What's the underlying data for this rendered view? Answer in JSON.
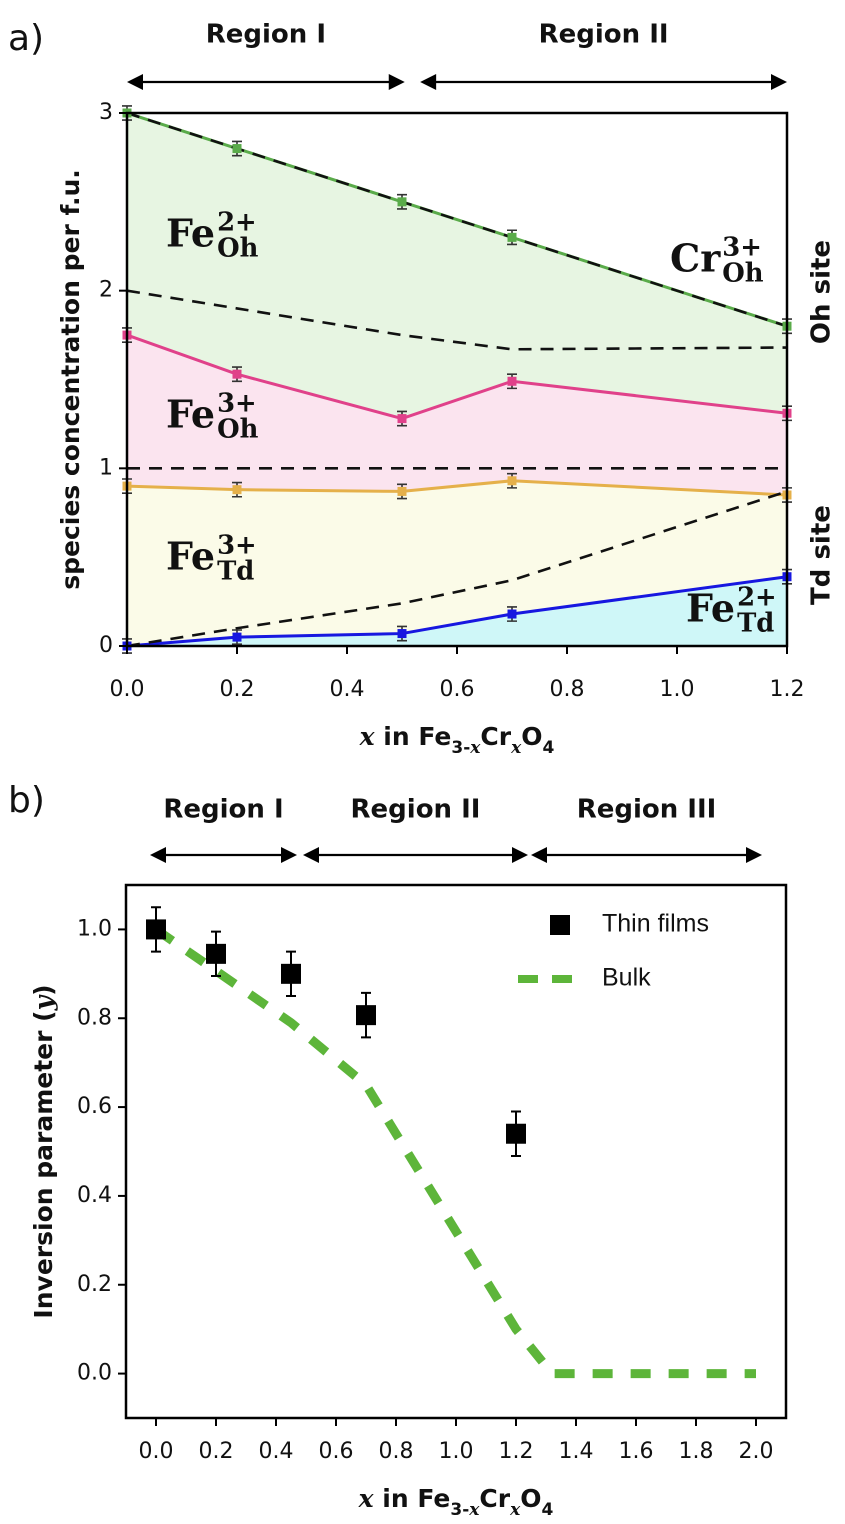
{
  "chart_data": [
    {
      "type": "area-line",
      "panel_label": "a)",
      "xlabel": [
        {
          "text": "x",
          "italic": true
        },
        {
          "text": " in Fe"
        },
        {
          "text": "3-",
          "sub": true
        },
        {
          "text": "x",
          "sub": true,
          "italic": true
        },
        {
          "text": "Cr"
        },
        {
          "text": "x",
          "sub": true,
          "italic": true
        },
        {
          "text": "O"
        },
        {
          "text": "4",
          "sub": true
        }
      ],
      "ylabel": [
        {
          "text": "species concentration per f.u."
        }
      ],
      "xlim": [
        0,
        1.2
      ],
      "ylim": [
        0,
        3
      ],
      "xticks": [
        {
          "value": 0,
          "label": "0.0"
        },
        {
          "value": 0.2,
          "label": "0.2"
        },
        {
          "value": 0.4,
          "label": "0.4"
        },
        {
          "value": 0.6,
          "label": "0.6"
        },
        {
          "value": 0.8,
          "label": "0.8"
        },
        {
          "value": 1.0,
          "label": "1.0"
        },
        {
          "value": 1.2,
          "label": "1.2"
        }
      ],
      "yticks": [
        0,
        1,
        2,
        3
      ],
      "regions": [
        {
          "label": "Region I",
          "range": [
            0,
            0.505
          ]
        },
        {
          "label": "Region II",
          "range": [
            0.533,
            1.2
          ]
        }
      ],
      "site_labels": [
        "Oh site",
        "Td site"
      ],
      "x": [
        0,
        0.2,
        0.5,
        0.7,
        1.2
      ],
      "series": [
        {
          "label": {
            "base": "Fe",
            "sup": "2+",
            "sub": "Oh"
          },
          "color": "#5aab4a",
          "fill": "#e7f5e2",
          "label_color": "#5aa650",
          "values": [
            3.0,
            2.8,
            2.5,
            2.3,
            1.8
          ],
          "errors": [
            0.04,
            0.04,
            0.04,
            0.04,
            0.04
          ]
        },
        {
          "label": {
            "base": "Fe",
            "sup": "3+",
            "sub": "Oh"
          },
          "color": "#e0418a",
          "fill": "#fbe4ef",
          "label_color": "#e0418a",
          "values": [
            1.75,
            1.53,
            1.28,
            1.49,
            1.31
          ],
          "errors": [
            0.04,
            0.04,
            0.04,
            0.04,
            0.04
          ]
        },
        {
          "label": {
            "base": "Fe",
            "sup": "3+",
            "sub": "Td"
          },
          "color": "#e5b04a",
          "fill": "#fbfbe8",
          "label_color": "#c79a30",
          "values": [
            0.9,
            0.88,
            0.87,
            0.93,
            0.85
          ],
          "errors": [
            0.04,
            0.04,
            0.04,
            0.04,
            0.04
          ]
        },
        {
          "label": {
            "base": "Fe",
            "sup": "2+",
            "sub": "Td"
          },
          "color": "#1717e0",
          "fill": "#cff7f8",
          "label_color": "#1a1ad0",
          "values": [
            0.0,
            0.05,
            0.07,
            0.18,
            0.39
          ],
          "errors": [
            0.04,
            0.04,
            0.04,
            0.04,
            0.04
          ]
        }
      ],
      "dashed": [
        {
          "label": {
            "base": "Cr",
            "sup": "3+",
            "sub": "Oh"
          },
          "values": [
            3.0,
            2.8,
            2.5,
            2.3,
            1.8
          ]
        },
        {
          "values": [
            2.0,
            1.9,
            1.75,
            1.67,
            1.68
          ]
        },
        {
          "values": [
            1,
            1,
            1,
            1,
            1
          ]
        },
        {
          "values": [
            0,
            0.1,
            0.24,
            0.37,
            0.87
          ]
        }
      ],
      "dash_color": "#111111"
    },
    {
      "type": "scatter-line",
      "panel_label": "b)",
      "xlabel": [
        {
          "text": "x",
          "italic": true
        },
        {
          "text": " in Fe"
        },
        {
          "text": "3-",
          "sub": true
        },
        {
          "text": "x",
          "sub": true,
          "italic": true
        },
        {
          "text": "Cr"
        },
        {
          "text": "x",
          "sub": true,
          "italic": true
        },
        {
          "text": "O"
        },
        {
          "text": "4",
          "sub": true
        }
      ],
      "ylabel": [
        {
          "text": "Inversion parameter ("
        },
        {
          "text": "y",
          "italic": true
        },
        {
          "text": ")"
        }
      ],
      "xlim": [
        -0.1,
        2.1
      ],
      "ylim": [
        -0.1,
        1.1
      ],
      "xticks": [
        {
          "value": 0,
          "label": "0.0"
        },
        {
          "value": 0.2,
          "label": "0.2"
        },
        {
          "value": 0.4,
          "label": "0.4"
        },
        {
          "value": 0.6,
          "label": "0.6"
        },
        {
          "value": 0.8,
          "label": "0.8"
        },
        {
          "value": 1.0,
          "label": "1.0"
        },
        {
          "value": 1.2,
          "label": "1.2"
        },
        {
          "value": 1.4,
          "label": "1.4"
        },
        {
          "value": 1.6,
          "label": "1.6"
        },
        {
          "value": 1.8,
          "label": "1.8"
        },
        {
          "value": 2.0,
          "label": "2.0"
        }
      ],
      "yticks": [
        {
          "value": 0,
          "label": "0.0"
        },
        {
          "value": 0.2,
          "label": "0.2"
        },
        {
          "value": 0.4,
          "label": "0.4"
        },
        {
          "value": 0.6,
          "label": "0.6"
        },
        {
          "value": 0.8,
          "label": "0.8"
        },
        {
          "value": 1.0,
          "label": "1.0"
        }
      ],
      "regions": [
        {
          "label": "Region I",
          "range": [
            -0.02,
            0.47
          ]
        },
        {
          "label": "Region II",
          "range": [
            0.49,
            1.24
          ]
        },
        {
          "label": "Region III",
          "range": [
            1.25,
            2.02
          ]
        }
      ],
      "legend": "upper right",
      "series": [
        {
          "name": "Thin films",
          "kind": "scatter",
          "color": "#000000",
          "x": [
            0,
            0.2,
            0.45,
            0.7,
            1.2
          ],
          "values": [
            1.0,
            0.945,
            0.9,
            0.807,
            0.54
          ],
          "errors": [
            0.05,
            0.05,
            0.05,
            0.05,
            0.05
          ]
        },
        {
          "name": "Bulk",
          "kind": "dashed",
          "color": "#5db53a",
          "x": [
            0,
            0.45,
            0.7,
            1.2,
            1.32,
            2.0
          ],
          "values": [
            1.0,
            0.79,
            0.65,
            0.1,
            0,
            0
          ]
        }
      ]
    }
  ]
}
